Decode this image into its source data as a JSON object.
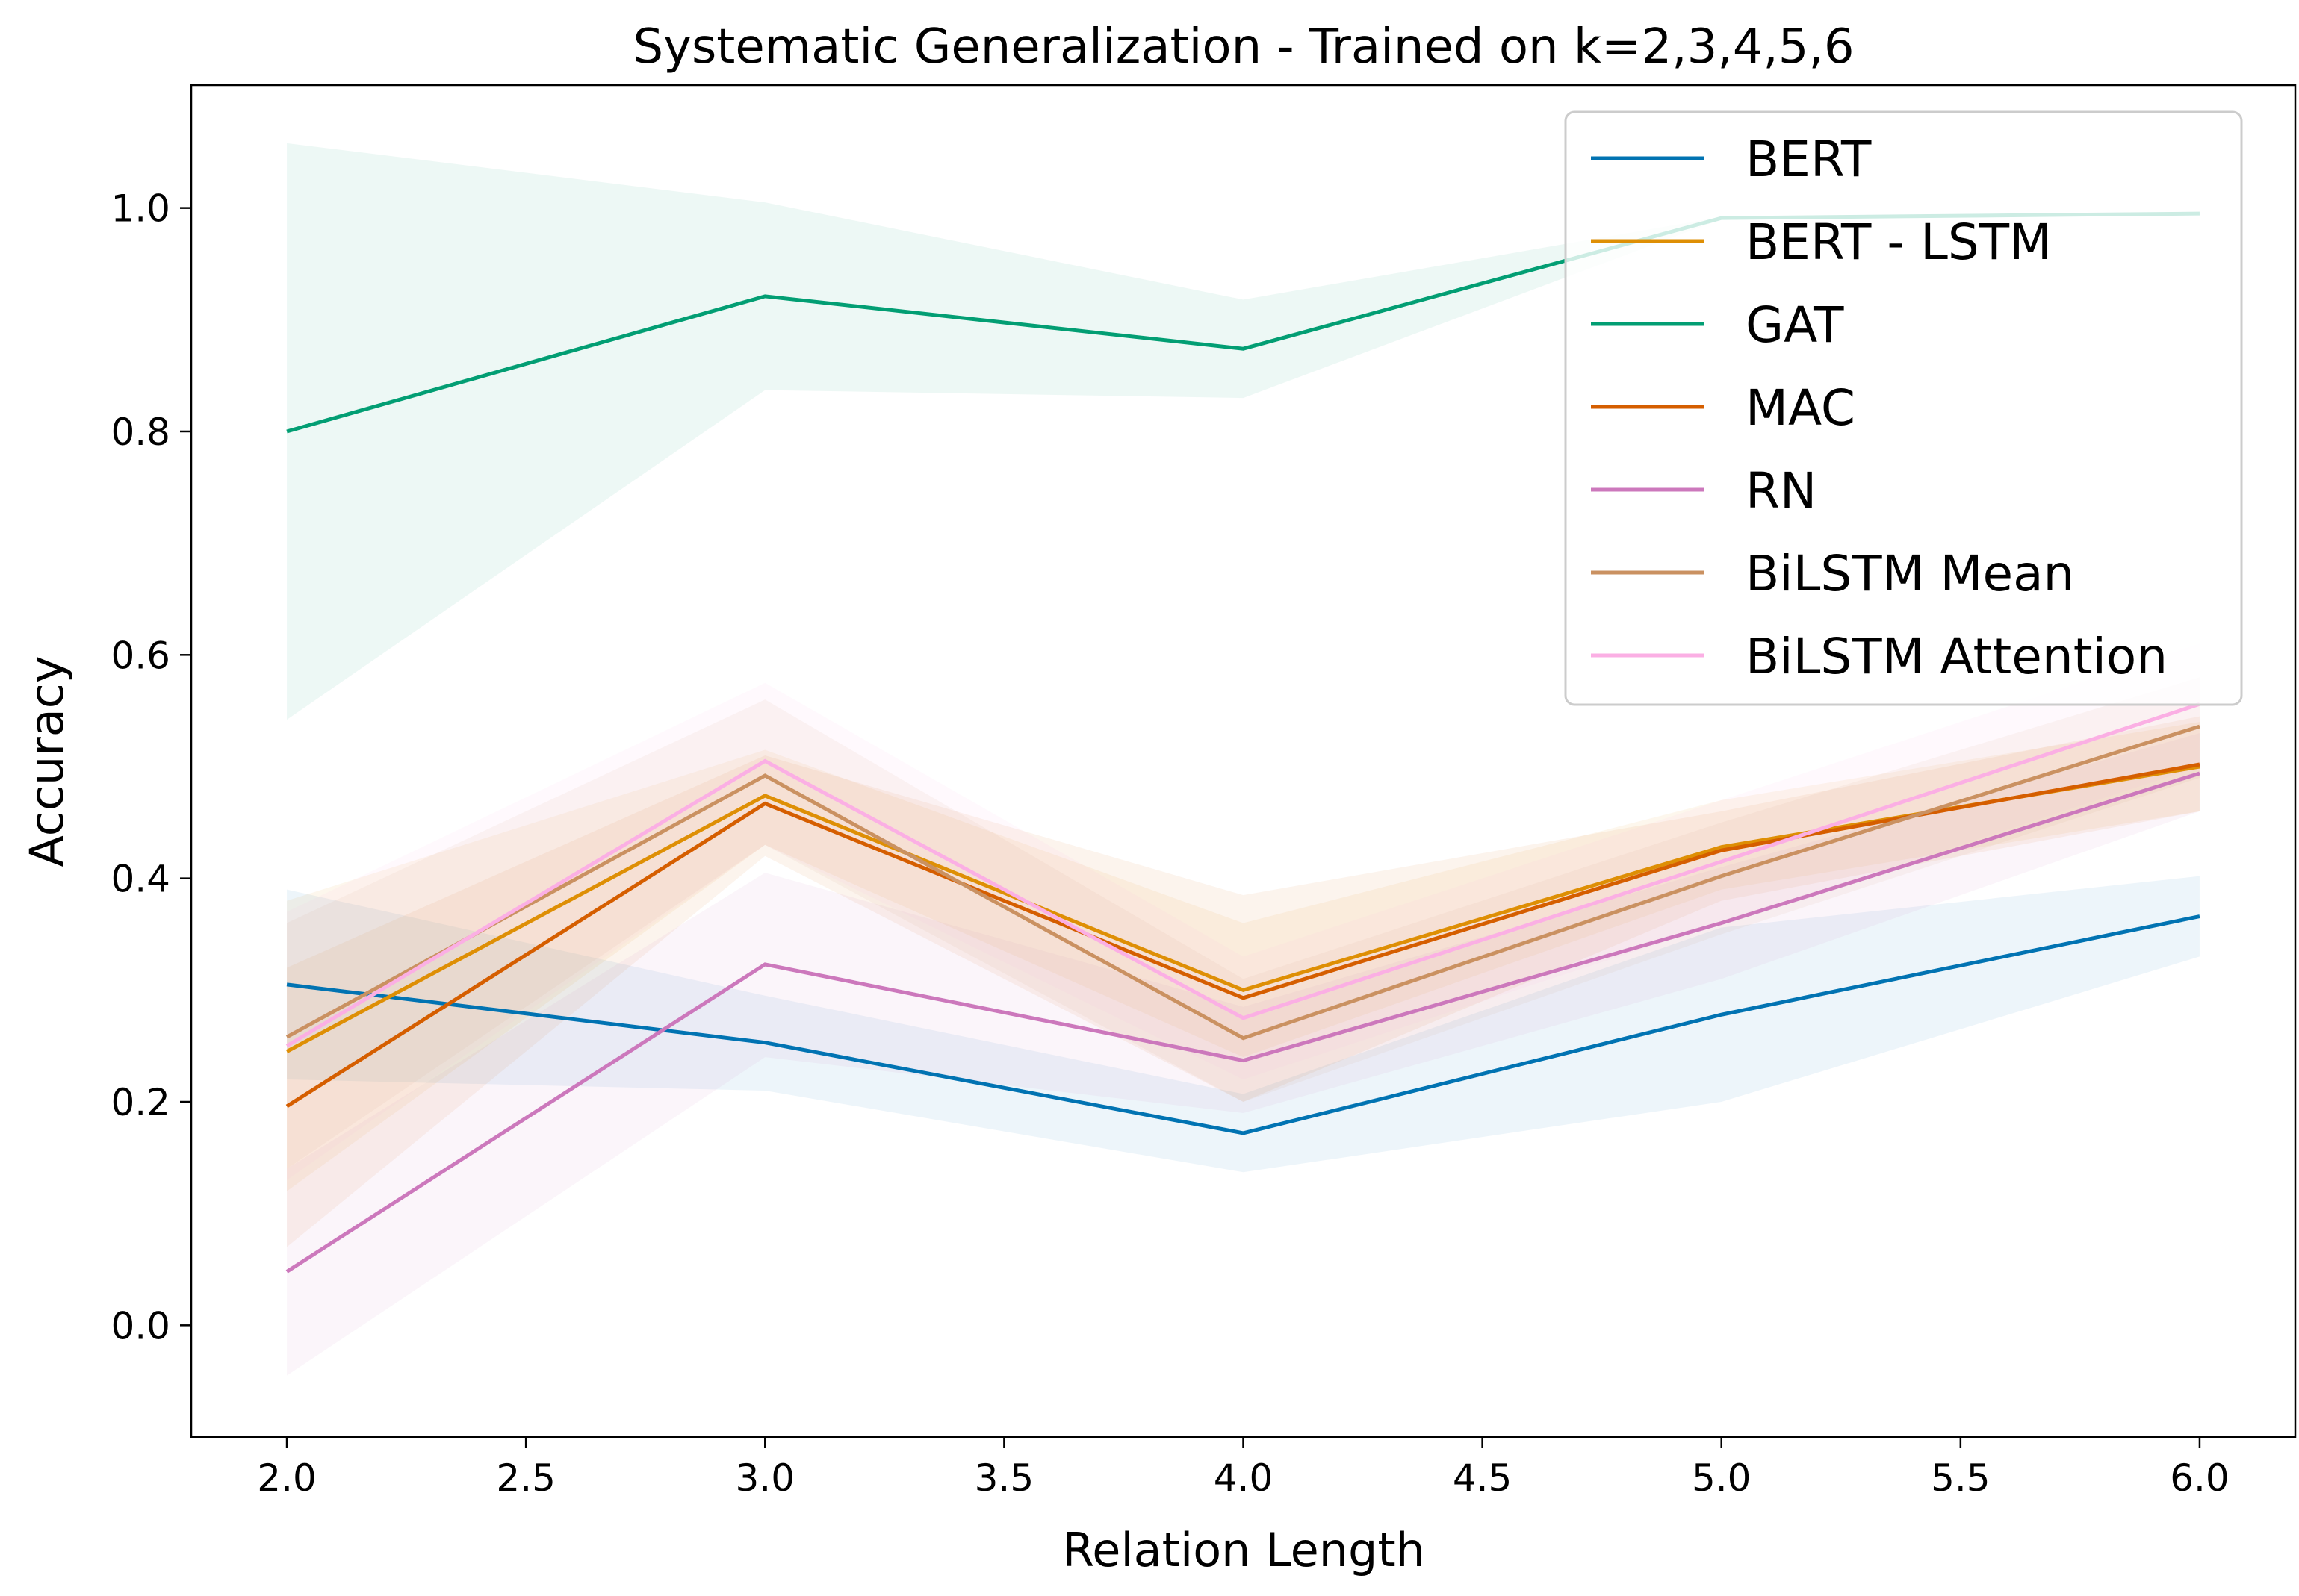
{
  "chart_data": {
    "type": "line",
    "title": "Systematic Generalization - Trained on k=2,3,4,5,6",
    "xlabel": "Relation Length",
    "ylabel": "Accuracy",
    "xlim": [
      1.8,
      6.2
    ],
    "ylim": [
      -0.1,
      1.11
    ],
    "xticks": [
      "2.0",
      "2.5",
      "3.0",
      "3.5",
      "4.0",
      "4.5",
      "5.0",
      "5.5",
      "6.0"
    ],
    "yticks": [
      "0.0",
      "0.2",
      "0.4",
      "0.6",
      "0.8",
      "1.0"
    ],
    "grid": false,
    "legend_position": "top-right",
    "x": [
      2,
      3,
      4,
      5,
      6
    ],
    "series": [
      {
        "name": "BERT",
        "color": "#0173b2",
        "values": [
          0.305,
          0.253,
          0.172,
          0.278,
          0.366
        ],
        "lower": [
          0.22,
          0.21,
          0.137,
          0.2,
          0.33
        ],
        "upper": [
          0.39,
          0.295,
          0.207,
          0.356,
          0.402
        ]
      },
      {
        "name": "BERT - LSTM",
        "color": "#de8f05",
        "values": [
          0.245,
          0.474,
          0.3,
          0.428,
          0.5
        ],
        "lower": [
          0.12,
          0.43,
          0.24,
          0.39,
          0.46
        ],
        "upper": [
          0.38,
          0.515,
          0.36,
          0.47,
          0.54
        ]
      },
      {
        "name": "GAT",
        "color": "#029e73",
        "values": [
          0.8,
          0.921,
          0.874,
          0.991,
          0.995
        ],
        "lower": [
          0.542,
          0.837,
          0.83,
          0.99,
          0.995
        ],
        "upper": [
          1.058,
          1.005,
          0.918,
          0.992,
          0.996
        ]
      },
      {
        "name": "MAC",
        "color": "#d55e00",
        "values": [
          0.196,
          0.467,
          0.293,
          0.425,
          0.502
        ],
        "lower": [
          0.07,
          0.42,
          0.2,
          0.38,
          0.46
        ],
        "upper": [
          0.32,
          0.51,
          0.385,
          0.46,
          0.545
        ]
      },
      {
        "name": "RN",
        "color": "#cc78bc",
        "values": [
          0.048,
          0.323,
          0.237,
          0.36,
          0.494
        ],
        "lower": [
          -0.045,
          0.24,
          0.19,
          0.31,
          0.46
        ],
        "upper": [
          0.14,
          0.405,
          0.285,
          0.41,
          0.53
        ]
      },
      {
        "name": "BiLSTM Mean",
        "color": "#ca9161",
        "values": [
          0.258,
          0.492,
          0.257,
          0.402,
          0.536
        ],
        "lower": [
          0.14,
          0.43,
          0.2,
          0.35,
          0.49
        ],
        "upper": [
          0.36,
          0.56,
          0.31,
          0.45,
          0.58
        ]
      },
      {
        "name": "BiLSTM Attention",
        "color": "#fbafe4",
        "values": [
          0.25,
          0.505,
          0.275,
          0.415,
          0.556
        ],
        "lower": [
          0.13,
          0.43,
          0.22,
          0.36,
          0.5
        ],
        "upper": [
          0.37,
          0.575,
          0.33,
          0.47,
          0.61
        ]
      }
    ]
  }
}
